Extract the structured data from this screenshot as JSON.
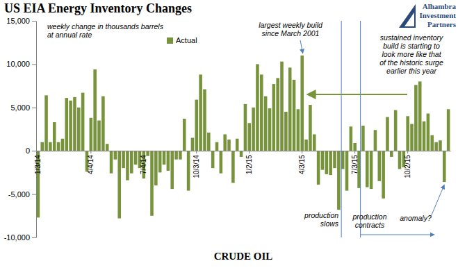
{
  "chart_data": {
    "type": "bar",
    "title": "US EIA Energy Inventory Changes",
    "xlabel": "CRUDE OIL",
    "source_lines": [
      "Alhambra",
      "Investment",
      "Partners"
    ],
    "categories": [
      "1/3/14",
      null,
      null,
      null,
      null,
      null,
      null,
      null,
      null,
      null,
      null,
      null,
      null,
      "4/4/14",
      null,
      null,
      null,
      null,
      null,
      null,
      null,
      null,
      null,
      null,
      null,
      null,
      "7/4/14",
      null,
      null,
      null,
      null,
      null,
      null,
      null,
      null,
      null,
      null,
      null,
      null,
      "10/3/14",
      null,
      null,
      null,
      null,
      null,
      null,
      null,
      null,
      null,
      null,
      null,
      null,
      "1/2/15",
      null,
      null,
      null,
      null,
      null,
      null,
      null,
      null,
      null,
      null,
      null,
      null,
      "4/3/15",
      null,
      null,
      null,
      null,
      null,
      null,
      null,
      null,
      null,
      null,
      null,
      null,
      "7/3/15",
      null,
      null,
      null,
      null,
      null,
      null,
      null,
      null,
      null,
      null,
      null,
      null,
      "10/2/15",
      null,
      null,
      null,
      null,
      null,
      null,
      null,
      null,
      null,
      null
    ],
    "series": [
      {
        "name": "Actual",
        "color": "#77933c",
        "values": [
          -7700,
          1000,
          6400,
          1000,
          3300,
          1000,
          1400,
          6100,
          5800,
          6200,
          5000,
          6700,
          -2400,
          3800,
          9400,
          3500,
          6300,
          800,
          -2600,
          -1000,
          -7800,
          -2000,
          -3400,
          -2600,
          -1600,
          -2000,
          -3200,
          -600,
          -7500,
          -4000,
          -2500,
          -1600,
          -2300,
          -4400,
          -1000,
          -1000,
          3700,
          -4600,
          1500,
          5900,
          8800,
          7100,
          2100,
          -2000,
          1000,
          -2600,
          1900,
          1300,
          -3700,
          1400,
          -700,
          5400,
          3200,
          5000,
          10000,
          8800,
          6300,
          4900,
          7700,
          8400,
          10300,
          4500,
          9600,
          8200,
          4800,
          11000,
          1300,
          5300,
          1900,
          -3900,
          -2200,
          -2700,
          -2800,
          -2000,
          -6800,
          -2100,
          -4600,
          2800,
          900,
          -4300,
          2900,
          -4200,
          -4400,
          2400,
          -3500,
          -5500,
          3900,
          -700,
          4700,
          -2100,
          -1900,
          4000,
          3100,
          7600,
          8000,
          3400,
          4300,
          1800,
          1000,
          1200,
          -3600,
          4800
        ]
      }
    ],
    "ylim": [
      -10000,
      15000
    ],
    "yticks": [
      {
        "value": -10000,
        "label": "-10,000"
      },
      {
        "value": -5000,
        "label": "-5,000"
      },
      0,
      {
        "value": 5000,
        "label": "5,000"
      },
      {
        "value": 10000,
        "label": "10,000"
      },
      {
        "value": 15000,
        "label": "15,000"
      }
    ],
    "grid": false,
    "legend": "top",
    "annotations": [
      {
        "lines": [
          "weekly change in thousands barrels",
          "at annual rate"
        ]
      },
      {
        "lines": [
          "largest weekly build",
          "since March 2001"
        ]
      },
      {
        "lines": [
          "sustained inventory",
          "build is starting to",
          "look more like that",
          "of the historic surge",
          "earlier this year"
        ]
      },
      {
        "lines": [
          "production",
          "slows"
        ]
      },
      {
        "lines": [
          "production",
          "contracts"
        ]
      },
      {
        "lines": [
          "anomaly?"
        ]
      }
    ]
  }
}
